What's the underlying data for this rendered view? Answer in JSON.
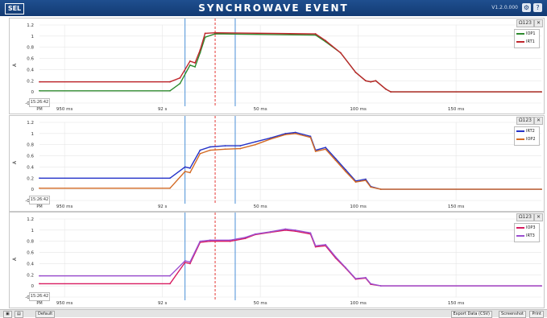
{
  "window": {
    "logo": "SEL",
    "title": "SYNCHROWAVE EVENT",
    "version": "V1.2.0.000",
    "icons": [
      "settings-icon",
      "help-icon"
    ]
  },
  "x_tick_labels": [
    "950 ms",
    "92 s",
    "50 ms",
    "100 ms",
    "150 ms"
  ],
  "y_tick_labels": [
    "1.2",
    "1",
    "0.8",
    "0.6",
    "0.4",
    "0.2",
    "0",
    "-0.2"
  ],
  "y_axis_label": "A",
  "panel_tools": {
    "zoom": "Ω123",
    "close": "✕"
  },
  "time_stamp": "15:26:42 PM",
  "panels": [
    {
      "legend": [
        {
          "name": "IOP1",
          "color": "#2e8b2e"
        },
        {
          "name": "IRT1",
          "color": "#c0262c"
        }
      ]
    },
    {
      "legend": [
        {
          "name": "IRT2",
          "color": "#2533c8"
        },
        {
          "name": "IOP2",
          "color": "#d36a24"
        }
      ]
    },
    {
      "legend": [
        {
          "name": "IOP3",
          "color": "#d81b60"
        },
        {
          "name": "IRT3",
          "color": "#9c4fd1"
        }
      ]
    }
  ],
  "chart_data": [
    {
      "type": "line",
      "x_range": [
        0,
        1
      ],
      "ylim": [
        -0.2,
        1.2
      ],
      "cursors": [
        0.29,
        0.35,
        0.39
      ],
      "series": [
        {
          "name": "IOP1",
          "x": [
            0,
            0.26,
            0.28,
            0.3,
            0.31,
            0.32,
            0.33,
            0.35,
            0.55,
            0.57,
            0.6,
            0.63,
            0.65,
            0.66,
            0.67,
            0.69,
            0.7,
            1
          ],
          "values": [
            0.02,
            0.02,
            0.15,
            0.48,
            0.45,
            0.7,
            0.98,
            1.04,
            1.02,
            0.9,
            0.7,
            0.35,
            0.2,
            0.18,
            0.2,
            0.05,
            0,
            0
          ]
        },
        {
          "name": "IRT1",
          "x": [
            0,
            0.26,
            0.28,
            0.3,
            0.31,
            0.32,
            0.33,
            0.35,
            0.55,
            0.57,
            0.6,
            0.63,
            0.65,
            0.66,
            0.67,
            0.69,
            0.7,
            1
          ],
          "values": [
            0.18,
            0.18,
            0.25,
            0.55,
            0.52,
            0.75,
            1.05,
            1.06,
            1.04,
            0.92,
            0.7,
            0.35,
            0.2,
            0.18,
            0.2,
            0.05,
            0,
            0
          ]
        }
      ]
    },
    {
      "type": "line",
      "x_range": [
        0,
        1
      ],
      "ylim": [
        -0.2,
        1.2
      ],
      "cursors": [
        0.29,
        0.35,
        0.39
      ],
      "series": [
        {
          "name": "IRT2",
          "x": [
            0,
            0.26,
            0.29,
            0.3,
            0.32,
            0.34,
            0.37,
            0.4,
            0.43,
            0.46,
            0.49,
            0.51,
            0.54,
            0.55,
            0.57,
            0.59,
            0.61,
            0.63,
            0.65,
            0.66,
            0.68,
            1
          ],
          "values": [
            0.2,
            0.2,
            0.4,
            0.38,
            0.7,
            0.76,
            0.78,
            0.78,
            0.85,
            0.92,
            1.0,
            1.02,
            0.95,
            0.7,
            0.75,
            0.55,
            0.35,
            0.15,
            0.18,
            0.05,
            0,
            0
          ]
        },
        {
          "name": "IOP2",
          "x": [
            0,
            0.26,
            0.29,
            0.3,
            0.32,
            0.34,
            0.37,
            0.4,
            0.43,
            0.46,
            0.49,
            0.51,
            0.54,
            0.55,
            0.57,
            0.59,
            0.61,
            0.63,
            0.65,
            0.66,
            0.68,
            1
          ],
          "values": [
            0.02,
            0.02,
            0.32,
            0.3,
            0.64,
            0.7,
            0.72,
            0.73,
            0.8,
            0.9,
            0.98,
            1.0,
            0.93,
            0.68,
            0.72,
            0.52,
            0.32,
            0.13,
            0.16,
            0.04,
            0,
            0
          ]
        }
      ]
    },
    {
      "type": "line",
      "x_range": [
        0,
        1
      ],
      "ylim": [
        -0.2,
        1.2
      ],
      "cursors": [
        0.29,
        0.35,
        0.39
      ],
      "series": [
        {
          "name": "IOP3",
          "x": [
            0,
            0.26,
            0.29,
            0.3,
            0.32,
            0.34,
            0.38,
            0.41,
            0.43,
            0.46,
            0.49,
            0.51,
            0.54,
            0.55,
            0.57,
            0.59,
            0.61,
            0.63,
            0.65,
            0.66,
            0.68,
            1
          ],
          "values": [
            0.04,
            0.04,
            0.42,
            0.4,
            0.78,
            0.8,
            0.8,
            0.85,
            0.92,
            0.96,
            1.0,
            0.98,
            0.93,
            0.7,
            0.72,
            0.5,
            0.32,
            0.12,
            0.14,
            0.03,
            0,
            0
          ]
        },
        {
          "name": "IRT3",
          "x": [
            0,
            0.26,
            0.29,
            0.3,
            0.32,
            0.34,
            0.38,
            0.41,
            0.43,
            0.46,
            0.49,
            0.51,
            0.54,
            0.55,
            0.57,
            0.59,
            0.61,
            0.63,
            0.65,
            0.66,
            0.68,
            1
          ],
          "values": [
            0.18,
            0.18,
            0.45,
            0.43,
            0.8,
            0.82,
            0.82,
            0.87,
            0.93,
            0.97,
            1.02,
            1.0,
            0.95,
            0.72,
            0.74,
            0.52,
            0.33,
            0.13,
            0.15,
            0.04,
            0,
            0
          ]
        }
      ]
    }
  ],
  "statusbar": {
    "buttons_right": [
      "Export Data (CSV)",
      "Screenshot",
      "Print"
    ],
    "left_tab": "Default"
  }
}
